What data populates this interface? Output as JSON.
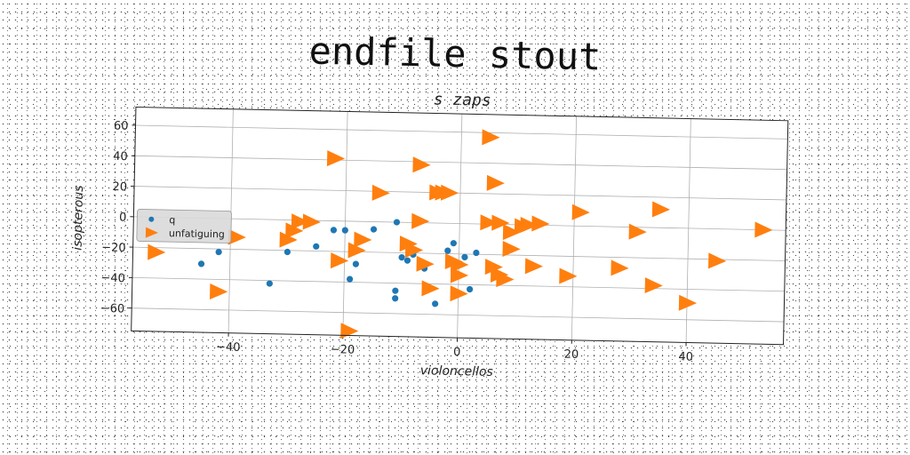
{
  "suptitle": "endfile stout",
  "chart_data": {
    "type": "scatter",
    "title": "s zaps",
    "xlabel": "violoncellos",
    "ylabel": "isopterous",
    "xlim": [
      -57,
      57
    ],
    "ylim": [
      -75,
      72
    ],
    "xticks": [
      -40,
      -20,
      0,
      20,
      40
    ],
    "yticks": [
      -60,
      -40,
      -20,
      0,
      20,
      40,
      60
    ],
    "grid": true,
    "legend_position": "center-left",
    "series": [
      {
        "name": "q",
        "marker": "circle",
        "color": "#1f77b4",
        "points": [
          [
            -45,
            -30
          ],
          [
            -42,
            -22
          ],
          [
            -33,
            -42
          ],
          [
            -30,
            -21
          ],
          [
            -25,
            -17
          ],
          [
            -22,
            -6
          ],
          [
            -20,
            -6
          ],
          [
            -19,
            -38
          ],
          [
            -18,
            -28
          ],
          [
            -15,
            -5
          ],
          [
            -11,
            -45
          ],
          [
            -11,
            -50
          ],
          [
            -11,
            0
          ],
          [
            -10,
            -23
          ],
          [
            -9,
            -25
          ],
          [
            -8,
            -21
          ],
          [
            -6,
            -30
          ],
          [
            -4,
            -53
          ],
          [
            -2,
            -18
          ],
          [
            -1,
            -13
          ],
          [
            1,
            -22
          ],
          [
            2,
            -43
          ],
          [
            3,
            -19
          ]
        ]
      },
      {
        "name": "unfatiguing",
        "marker": "triangle-right",
        "color": "#ff7f0e",
        "points": [
          [
            -53,
            -23
          ],
          [
            -42,
            -48
          ],
          [
            -39,
            -12
          ],
          [
            -30,
            -13
          ],
          [
            -29,
            -7
          ],
          [
            -28,
            -1
          ],
          [
            -26,
            -1
          ],
          [
            -22,
            41
          ],
          [
            -21,
            -26
          ],
          [
            -19,
            -72
          ],
          [
            -18,
            -19
          ],
          [
            -17,
            -12
          ],
          [
            -14,
            19
          ],
          [
            -9,
            -14
          ],
          [
            -8,
            -18
          ],
          [
            -7,
            38
          ],
          [
            -7,
            1
          ],
          [
            -6,
            -27
          ],
          [
            -5,
            -43
          ],
          [
            -4,
            20
          ],
          [
            -3,
            20
          ],
          [
            -2,
            20
          ],
          [
            -1,
            -25
          ],
          [
            0,
            -27
          ],
          [
            0,
            -34
          ],
          [
            0,
            -46
          ],
          [
            5,
            57
          ],
          [
            5,
            1
          ],
          [
            6,
            27
          ],
          [
            6,
            -28
          ],
          [
            7,
            1
          ],
          [
            7,
            -33
          ],
          [
            8,
            -36
          ],
          [
            9,
            -5
          ],
          [
            9,
            -16
          ],
          [
            11,
            -1
          ],
          [
            12,
            0
          ],
          [
            13,
            -27
          ],
          [
            14,
            1
          ],
          [
            19,
            -33
          ],
          [
            21,
            9
          ],
          [
            28,
            -27
          ],
          [
            31,
            -3
          ],
          [
            34,
            -38
          ],
          [
            35,
            12
          ],
          [
            40,
            -49
          ],
          [
            45,
            -21
          ],
          [
            53,
            0
          ]
        ]
      }
    ]
  }
}
